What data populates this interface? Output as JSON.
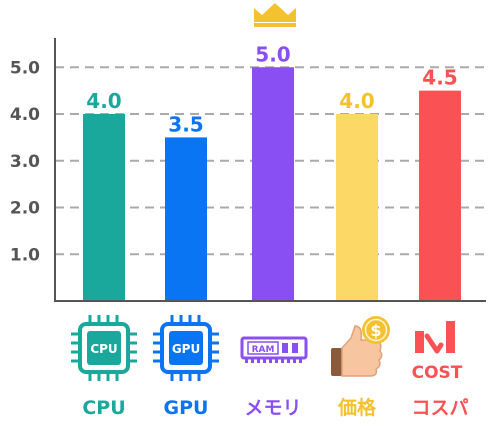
{
  "chart_data": {
    "type": "bar",
    "categories": [
      "CPU",
      "GPU",
      "メモリ",
      "価格",
      "コスパ"
    ],
    "values": [
      4.0,
      3.5,
      5.0,
      4.0,
      4.5
    ],
    "value_labels": [
      "4.0",
      "3.5",
      "5.0",
      "4.0",
      "4.5"
    ],
    "colors": [
      "#1aa89c",
      "#0a75f2",
      "#8a4ff2",
      "#fcd867",
      "#fa5254"
    ],
    "label_colors": [
      "#1aa89c",
      "#0a75f2",
      "#8a4ff2",
      "#f5c22f",
      "#fa5254"
    ],
    "y_ticks": [
      1.0,
      2.0,
      3.0,
      4.0,
      5.0
    ],
    "y_tick_labels": [
      "1.0",
      "2.0",
      "3.0",
      "4.0",
      "5.0"
    ],
    "ylim": [
      0,
      5.5
    ],
    "grid": true,
    "title": "",
    "xlabel": "",
    "ylabel": ""
  },
  "icons": {
    "cpu_text": "CPU",
    "gpu_text": "GPU",
    "ram_text": "RAM",
    "coin_text": "$",
    "cost_text": "COST",
    "crown_color": "#f5c22f"
  }
}
